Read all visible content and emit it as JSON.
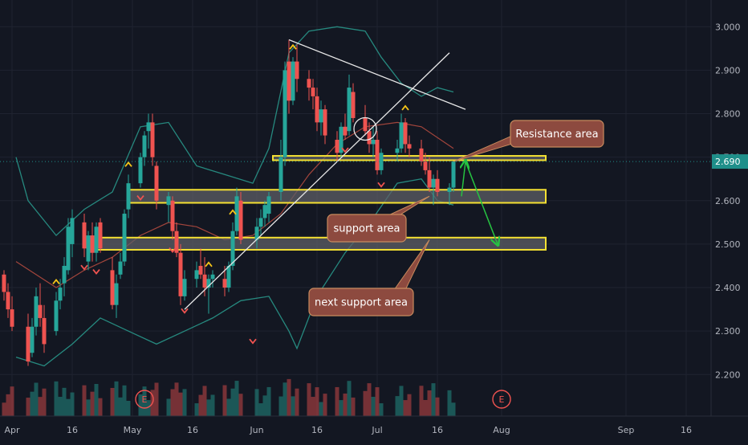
{
  "chart_data": {
    "type": "candlestick",
    "colors": {
      "background": "#131722",
      "grid": "#1f2330",
      "up": "#26a69a",
      "down": "#ef5350",
      "bollinger": "#2a9d8f",
      "bollinger_basis": "#b34a3f",
      "zone_border": "#f5e132",
      "zone_fill": "#5d5f66",
      "callout_fill": "#8d4a3f",
      "callout_border": "#c98b5d",
      "arrow": "#26c341",
      "price_tag": "#1f8f8a",
      "trendline": "#e8e8e8",
      "marker_up": "#f5c518",
      "marker_down": "#ef5350"
    },
    "y_axis": {
      "ticks": [
        "3.000",
        "2.900",
        "2.800",
        "2.700",
        "2.600",
        "2.500",
        "2.400",
        "2.300",
        "2.200"
      ],
      "tick_values": [
        3.0,
        2.9,
        2.8,
        2.7,
        2.6,
        2.5,
        2.4,
        2.3,
        2.2
      ],
      "range": [
        2.11,
        3.08
      ],
      "position": "right"
    },
    "x_axis": {
      "labels": [
        "Apr",
        "16",
        "May",
        "16",
        "Jun",
        "16",
        "Jul",
        "16",
        "Aug",
        "Sep",
        "16"
      ],
      "label_dates": [
        "2021-04-01",
        "2021-04-16",
        "2021-05-01",
        "2021-05-16",
        "2021-06-01",
        "2021-06-16",
        "2021-07-01",
        "2021-07-16",
        "2021-08-01",
        "2021-09-01",
        "2021-09-16"
      ],
      "range": [
        "2021-03-29",
        "2021-09-20"
      ]
    },
    "last_price": {
      "value": 2.69,
      "label": "2.690"
    },
    "candles": [
      [
        "2021-03-30",
        2.43,
        2.44,
        2.37,
        2.39
      ],
      [
        "2021-03-31",
        2.39,
        2.41,
        2.33,
        2.35
      ],
      [
        "2021-04-01",
        2.35,
        2.38,
        2.3,
        2.31
      ],
      [
        "2021-04-05",
        2.31,
        2.34,
        2.22,
        2.23
      ],
      [
        "2021-04-06",
        2.25,
        2.33,
        2.24,
        2.31
      ],
      [
        "2021-04-07",
        2.31,
        2.4,
        2.29,
        2.38
      ],
      [
        "2021-04-08",
        2.36,
        2.41,
        2.31,
        2.33
      ],
      [
        "2021-04-09",
        2.33,
        2.36,
        2.25,
        2.27
      ],
      [
        "2021-04-12",
        2.3,
        2.39,
        2.29,
        2.37
      ],
      [
        "2021-04-13",
        2.37,
        2.42,
        2.35,
        2.4
      ],
      [
        "2021-04-14",
        2.41,
        2.47,
        2.38,
        2.45
      ],
      [
        "2021-04-15",
        2.44,
        2.56,
        2.43,
        2.54
      ],
      [
        "2021-04-16",
        2.5,
        2.58,
        2.47,
        2.56
      ],
      [
        "2021-04-19",
        2.55,
        2.57,
        2.47,
        2.49
      ],
      [
        "2021-04-20",
        2.46,
        2.53,
        2.44,
        2.52
      ],
      [
        "2021-04-21",
        2.52,
        2.55,
        2.46,
        2.48
      ],
      [
        "2021-04-22",
        2.48,
        2.55,
        2.46,
        2.54
      ],
      [
        "2021-04-23",
        2.55,
        2.56,
        2.48,
        2.49
      ],
      [
        "2021-04-26",
        2.44,
        2.47,
        2.35,
        2.36
      ],
      [
        "2021-04-27",
        2.36,
        2.43,
        2.33,
        2.41
      ],
      [
        "2021-04-28",
        2.43,
        2.48,
        2.42,
        2.46
      ],
      [
        "2021-04-29",
        2.46,
        2.58,
        2.45,
        2.57
      ],
      [
        "2021-04-30",
        2.58,
        2.66,
        2.56,
        2.64
      ],
      [
        "2021-05-03",
        2.64,
        2.71,
        2.63,
        2.7
      ],
      [
        "2021-05-04",
        2.7,
        2.76,
        2.68,
        2.75
      ],
      [
        "2021-05-05",
        2.76,
        2.8,
        2.72,
        2.78
      ],
      [
        "2021-05-06",
        2.78,
        2.8,
        2.68,
        2.7
      ],
      [
        "2021-05-07",
        2.68,
        2.69,
        2.58,
        2.6
      ],
      [
        "2021-05-10",
        2.59,
        2.62,
        2.55,
        2.61
      ],
      [
        "2021-05-11",
        2.6,
        2.61,
        2.51,
        2.53
      ],
      [
        "2021-05-12",
        2.53,
        2.55,
        2.47,
        2.48
      ],
      [
        "2021-05-13",
        2.48,
        2.5,
        2.36,
        2.38
      ],
      [
        "2021-05-14",
        2.38,
        2.44,
        2.37,
        2.42
      ],
      [
        "2021-05-17",
        2.42,
        2.46,
        2.4,
        2.44
      ],
      [
        "2021-05-18",
        2.45,
        2.49,
        2.42,
        2.43
      ],
      [
        "2021-05-19",
        2.43,
        2.47,
        2.38,
        2.4
      ],
      [
        "2021-05-20",
        2.4,
        2.43,
        2.34,
        2.42
      ],
      [
        "2021-05-21",
        2.42,
        2.44,
        2.4,
        2.43
      ],
      [
        "2021-05-24",
        2.42,
        2.45,
        2.38,
        2.4
      ],
      [
        "2021-05-25",
        2.4,
        2.46,
        2.39,
        2.45
      ],
      [
        "2021-05-26",
        2.45,
        2.55,
        2.44,
        2.53
      ],
      [
        "2021-05-27",
        2.53,
        2.63,
        2.52,
        2.61
      ],
      [
        "2021-05-28",
        2.6,
        2.62,
        2.5,
        2.51
      ],
      [
        "2021-06-01",
        2.51,
        2.56,
        2.49,
        2.54
      ],
      [
        "2021-06-02",
        2.54,
        2.58,
        2.52,
        2.56
      ],
      [
        "2021-06-03",
        2.56,
        2.6,
        2.54,
        2.59
      ],
      [
        "2021-06-04",
        2.57,
        2.62,
        2.55,
        2.61
      ],
      [
        "2021-06-07",
        2.62,
        2.74,
        2.6,
        2.7
      ],
      [
        "2021-06-08",
        2.7,
        2.92,
        2.68,
        2.9
      ],
      [
        "2021-06-09",
        2.92,
        2.97,
        2.8,
        2.83
      ],
      [
        "2021-06-10",
        2.83,
        2.93,
        2.82,
        2.92
      ],
      [
        "2021-06-11",
        2.92,
        2.96,
        2.85,
        2.88
      ],
      [
        "2021-06-14",
        2.88,
        2.9,
        2.83,
        2.86
      ],
      [
        "2021-06-15",
        2.86,
        2.88,
        2.81,
        2.84
      ],
      [
        "2021-06-16",
        2.84,
        2.86,
        2.76,
        2.78
      ],
      [
        "2021-06-17",
        2.78,
        2.83,
        2.75,
        2.81
      ],
      [
        "2021-06-18",
        2.81,
        2.82,
        2.73,
        2.75
      ],
      [
        "2021-06-21",
        2.74,
        2.76,
        2.69,
        2.71
      ],
      [
        "2021-06-22",
        2.71,
        2.78,
        2.7,
        2.77
      ],
      [
        "2021-06-23",
        2.77,
        2.8,
        2.74,
        2.75
      ],
      [
        "2021-06-24",
        2.76,
        2.89,
        2.75,
        2.86
      ],
      [
        "2021-06-25",
        2.85,
        2.87,
        2.78,
        2.79
      ],
      [
        "2021-06-28",
        2.79,
        2.82,
        2.75,
        2.76
      ],
      [
        "2021-06-29",
        2.76,
        2.78,
        2.71,
        2.73
      ],
      [
        "2021-06-30",
        2.73,
        2.77,
        2.7,
        2.74
      ],
      [
        "2021-07-01",
        2.74,
        2.76,
        2.66,
        2.67
      ],
      [
        "2021-07-02",
        2.67,
        2.72,
        2.66,
        2.71
      ],
      [
        "2021-07-06",
        2.71,
        2.74,
        2.69,
        2.72
      ],
      [
        "2021-07-07",
        2.72,
        2.8,
        2.71,
        2.78
      ],
      [
        "2021-07-08",
        2.78,
        2.79,
        2.71,
        2.73
      ],
      [
        "2021-07-09",
        2.73,
        2.75,
        2.7,
        2.72
      ],
      [
        "2021-07-12",
        2.72,
        2.74,
        2.68,
        2.69
      ],
      [
        "2021-07-13",
        2.69,
        2.71,
        2.66,
        2.67
      ],
      [
        "2021-07-14",
        2.67,
        2.7,
        2.62,
        2.63
      ],
      [
        "2021-07-15",
        2.63,
        2.66,
        2.59,
        2.65
      ],
      [
        "2021-07-16",
        2.65,
        2.67,
        2.61,
        2.62
      ],
      [
        "2021-07-19",
        2.62,
        2.64,
        2.59,
        2.63
      ],
      [
        "2021-07-20",
        2.63,
        2.69,
        2.62,
        2.69
      ]
    ],
    "bollinger": {
      "upper": [
        [
          "2021-04-02",
          2.7
        ],
        [
          "2021-04-05",
          2.6
        ],
        [
          "2021-04-12",
          2.52
        ],
        [
          "2021-04-19",
          2.58
        ],
        [
          "2021-04-26",
          2.62
        ],
        [
          "2021-05-03",
          2.77
        ],
        [
          "2021-05-10",
          2.78
        ],
        [
          "2021-05-17",
          2.68
        ],
        [
          "2021-05-24",
          2.66
        ],
        [
          "2021-05-31",
          2.64
        ],
        [
          "2021-06-04",
          2.72
        ],
        [
          "2021-06-09",
          2.94
        ],
        [
          "2021-06-14",
          2.99
        ],
        [
          "2021-06-21",
          3.0
        ],
        [
          "2021-06-28",
          2.99
        ],
        [
          "2021-07-02",
          2.93
        ],
        [
          "2021-07-07",
          2.87
        ],
        [
          "2021-07-12",
          2.84
        ],
        [
          "2021-07-16",
          2.86
        ],
        [
          "2021-07-20",
          2.85
        ]
      ],
      "basis": [
        [
          "2021-04-02",
          2.46
        ],
        [
          "2021-04-12",
          2.4
        ],
        [
          "2021-04-19",
          2.44
        ],
        [
          "2021-04-26",
          2.47
        ],
        [
          "2021-05-03",
          2.52
        ],
        [
          "2021-05-10",
          2.55
        ],
        [
          "2021-05-17",
          2.54
        ],
        [
          "2021-05-24",
          2.51
        ],
        [
          "2021-05-31",
          2.52
        ],
        [
          "2021-06-07",
          2.57
        ],
        [
          "2021-06-14",
          2.66
        ],
        [
          "2021-06-21",
          2.73
        ],
        [
          "2021-06-28",
          2.77
        ],
        [
          "2021-07-06",
          2.78
        ],
        [
          "2021-07-12",
          2.77
        ],
        [
          "2021-07-20",
          2.72
        ]
      ],
      "lower": [
        [
          "2021-04-02",
          2.24
        ],
        [
          "2021-04-09",
          2.22
        ],
        [
          "2021-04-16",
          2.27
        ],
        [
          "2021-04-23",
          2.33
        ],
        [
          "2021-04-30",
          2.3
        ],
        [
          "2021-05-07",
          2.27
        ],
        [
          "2021-05-14",
          2.3
        ],
        [
          "2021-05-21",
          2.33
        ],
        [
          "2021-05-28",
          2.37
        ],
        [
          "2021-06-04",
          2.38
        ],
        [
          "2021-06-09",
          2.3
        ],
        [
          "2021-06-11",
          2.26
        ],
        [
          "2021-06-16",
          2.38
        ],
        [
          "2021-06-23",
          2.48
        ],
        [
          "2021-06-30",
          2.56
        ],
        [
          "2021-07-06",
          2.64
        ],
        [
          "2021-07-12",
          2.65
        ],
        [
          "2021-07-16",
          2.6
        ],
        [
          "2021-07-20",
          2.59
        ]
      ]
    },
    "volume_colors": "candle",
    "earnings_markers": [
      {
        "date": "2021-05-04",
        "label": "E"
      },
      {
        "date": "2021-08-01",
        "label": "E"
      }
    ],
    "zones": [
      {
        "name": "resistance-zone",
        "low": 2.693,
        "high": 2.703,
        "start": "2021-06-05",
        "end": "2021-08-12"
      },
      {
        "name": "support-zone",
        "low": 2.595,
        "high": 2.625,
        "start": "2021-04-30",
        "end": "2021-08-12"
      },
      {
        "name": "next-support-zone",
        "low": 2.487,
        "high": 2.515,
        "start": "2021-04-22",
        "end": "2021-08-12"
      }
    ],
    "trendlines": [
      {
        "from": [
          "2021-05-14",
          2.35
        ],
        "to": [
          "2021-07-19",
          2.94
        ]
      },
      {
        "from": [
          "2021-06-09",
          2.97
        ],
        "to": [
          "2021-07-23",
          2.81
        ]
      }
    ],
    "projection_arrows": [
      {
        "from": [
          "2021-07-22",
          2.61
        ],
        "to": [
          "2021-07-23",
          2.69
        ]
      },
      {
        "from": [
          "2021-07-23",
          2.69
        ],
        "to": [
          "2021-07-31",
          2.5
        ]
      }
    ],
    "callouts": [
      {
        "label": "Resistance area",
        "anchor": [
          "2021-07-20",
          2.69
        ]
      },
      {
        "label": "support area",
        "anchor": [
          "2021-07-14",
          2.61
        ]
      },
      {
        "label": "next support area",
        "anchor": [
          "2021-07-14",
          2.51
        ]
      }
    ],
    "up_markers": [
      "2021-04-12",
      "2021-04-30",
      "2021-05-20",
      "2021-05-26",
      "2021-06-10",
      "2021-07-08"
    ],
    "down_markers": [
      "2021-04-19",
      "2021-04-22",
      "2021-05-03",
      "2021-05-11",
      "2021-05-14",
      "2021-05-31",
      "2021-06-23",
      "2021-07-02"
    ]
  }
}
